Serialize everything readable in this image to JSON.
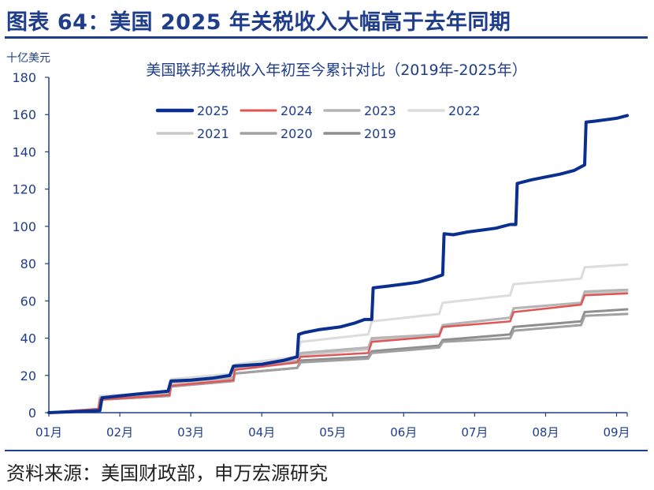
{
  "figure": {
    "title": "图表 64：美国 2025 年关税收入大幅高于去年同期",
    "source": "资料来源：美国财政部，申万宏源研究"
  },
  "chart_data": {
    "type": "line",
    "title": "美国联邦关税收入年初至今累计对比（2019年-2025年）",
    "ylabel": "十亿美元",
    "xlabel": "",
    "ylim": [
      0,
      180
    ],
    "yticks": [
      0,
      20,
      40,
      60,
      80,
      100,
      120,
      140,
      160,
      180
    ],
    "xlim": [
      1,
      9.15
    ],
    "xticks": [
      1,
      2,
      3,
      4,
      5,
      6,
      7,
      8,
      9
    ],
    "xtick_labels": [
      "01月",
      "02月",
      "03月",
      "04月",
      "05月",
      "06月",
      "07月",
      "08月",
      "09月"
    ],
    "grid": false,
    "legend_position": "top-left",
    "series": [
      {
        "name": "2025",
        "color": "#0b2f8f",
        "width": 4,
        "points": [
          [
            1,
            0
          ],
          [
            1.5,
            0.8
          ],
          [
            1.72,
            1.2
          ],
          [
            1.75,
            8
          ],
          [
            2,
            9
          ],
          [
            2.25,
            10
          ],
          [
            2.68,
            11.5
          ],
          [
            2.72,
            17
          ],
          [
            3,
            17.5
          ],
          [
            3.3,
            18.5
          ],
          [
            3.55,
            20
          ],
          [
            3.6,
            25
          ],
          [
            4,
            26
          ],
          [
            4.3,
            28
          ],
          [
            4.5,
            30
          ],
          [
            4.52,
            42
          ],
          [
            4.6,
            43
          ],
          [
            4.8,
            44.5
          ],
          [
            5.1,
            46
          ],
          [
            5.3,
            48
          ],
          [
            5.45,
            50
          ],
          [
            5.55,
            50
          ],
          [
            5.57,
            67
          ],
          [
            5.8,
            68
          ],
          [
            6,
            69
          ],
          [
            6.2,
            70
          ],
          [
            6.4,
            72
          ],
          [
            6.55,
            74
          ],
          [
            6.57,
            96
          ],
          [
            6.7,
            95.5
          ],
          [
            6.9,
            97
          ],
          [
            7.1,
            98
          ],
          [
            7.3,
            99
          ],
          [
            7.5,
            101
          ],
          [
            7.58,
            101
          ],
          [
            7.6,
            123
          ],
          [
            7.7,
            124
          ],
          [
            7.8,
            125
          ],
          [
            8,
            126.5
          ],
          [
            8.2,
            128
          ],
          [
            8.4,
            130
          ],
          [
            8.5,
            132
          ],
          [
            8.55,
            133
          ],
          [
            8.57,
            156
          ],
          [
            8.7,
            156.5
          ],
          [
            8.8,
            157
          ],
          [
            9,
            158
          ],
          [
            9.15,
            159.5
          ]
        ]
      },
      {
        "name": "2024",
        "color": "#e05555",
        "width": 2.5,
        "points": [
          [
            1,
            0
          ],
          [
            1.7,
            2
          ],
          [
            1.72,
            7
          ],
          [
            2.7,
            9.5
          ],
          [
            2.72,
            14.5
          ],
          [
            3.6,
            17.5
          ],
          [
            3.62,
            23
          ],
          [
            4.5,
            27
          ],
          [
            4.55,
            30
          ],
          [
            5.5,
            32
          ],
          [
            5.55,
            38
          ],
          [
            6.5,
            41
          ],
          [
            6.55,
            46
          ],
          [
            7.5,
            49
          ],
          [
            7.55,
            54
          ],
          [
            8.5,
            58
          ],
          [
            8.55,
            63
          ],
          [
            9.15,
            64
          ]
        ]
      },
      {
        "name": "2023",
        "color": "#b5b5b5",
        "width": 3,
        "points": [
          [
            1,
            0
          ],
          [
            1.7,
            2
          ],
          [
            1.72,
            8
          ],
          [
            2.7,
            10
          ],
          [
            2.72,
            16
          ],
          [
            3.6,
            19
          ],
          [
            3.62,
            24
          ],
          [
            4.5,
            28
          ],
          [
            4.55,
            32
          ],
          [
            5.5,
            35
          ],
          [
            5.55,
            40
          ],
          [
            6.5,
            42
          ],
          [
            6.55,
            47
          ],
          [
            7.5,
            51
          ],
          [
            7.55,
            56
          ],
          [
            8.5,
            59
          ],
          [
            8.55,
            65
          ],
          [
            9.15,
            66
          ]
        ]
      },
      {
        "name": "2022",
        "color": "#dcdcdc",
        "width": 3,
        "points": [
          [
            1,
            0
          ],
          [
            1.7,
            2
          ],
          [
            1.72,
            9
          ],
          [
            2.7,
            11
          ],
          [
            2.72,
            18
          ],
          [
            3.6,
            21
          ],
          [
            3.62,
            26
          ],
          [
            4.5,
            30
          ],
          [
            4.55,
            38
          ],
          [
            5.5,
            42
          ],
          [
            5.55,
            49
          ],
          [
            6.5,
            53
          ],
          [
            6.55,
            59
          ],
          [
            7.5,
            63
          ],
          [
            7.55,
            69
          ],
          [
            8.5,
            72
          ],
          [
            8.55,
            78
          ],
          [
            9.15,
            79.5
          ]
        ]
      },
      {
        "name": "2021",
        "color": "#c8c8c8",
        "width": 3,
        "points": [
          [
            1,
            0
          ],
          [
            1.7,
            2
          ],
          [
            1.72,
            8
          ],
          [
            2.7,
            10
          ],
          [
            2.72,
            16
          ],
          [
            3.6,
            18
          ],
          [
            3.62,
            23
          ],
          [
            4.5,
            27
          ],
          [
            4.55,
            31
          ],
          [
            5.5,
            34
          ],
          [
            5.55,
            39
          ],
          [
            6.5,
            42
          ],
          [
            6.55,
            47
          ],
          [
            7.5,
            51
          ],
          [
            7.55,
            56
          ],
          [
            8.5,
            59
          ],
          [
            8.55,
            64
          ],
          [
            9.15,
            65
          ]
        ]
      },
      {
        "name": "2020",
        "color": "#a0a0a0",
        "width": 3,
        "points": [
          [
            1,
            0
          ],
          [
            1.7,
            2
          ],
          [
            1.72,
            7
          ],
          [
            2.7,
            9
          ],
          [
            2.72,
            14
          ],
          [
            3.6,
            17
          ],
          [
            3.62,
            21
          ],
          [
            4.5,
            24
          ],
          [
            4.55,
            27
          ],
          [
            5.5,
            29
          ],
          [
            5.55,
            32
          ],
          [
            6.5,
            35
          ],
          [
            6.55,
            38
          ],
          [
            7.5,
            40
          ],
          [
            7.55,
            44
          ],
          [
            8.5,
            47
          ],
          [
            8.55,
            52
          ],
          [
            9.15,
            53
          ]
        ]
      },
      {
        "name": "2019",
        "color": "#8e8e8e",
        "width": 3,
        "points": [
          [
            1,
            0
          ],
          [
            1.7,
            2
          ],
          [
            1.72,
            7
          ],
          [
            2.7,
            9
          ],
          [
            2.72,
            14
          ],
          [
            3.6,
            17
          ],
          [
            3.62,
            21
          ],
          [
            4.5,
            24
          ],
          [
            4.55,
            28
          ],
          [
            5.5,
            30
          ],
          [
            5.55,
            33
          ],
          [
            6.5,
            36
          ],
          [
            6.55,
            39
          ],
          [
            7.5,
            42
          ],
          [
            7.55,
            46
          ],
          [
            8.5,
            49
          ],
          [
            8.55,
            54
          ],
          [
            9.15,
            55.5
          ]
        ]
      }
    ]
  }
}
